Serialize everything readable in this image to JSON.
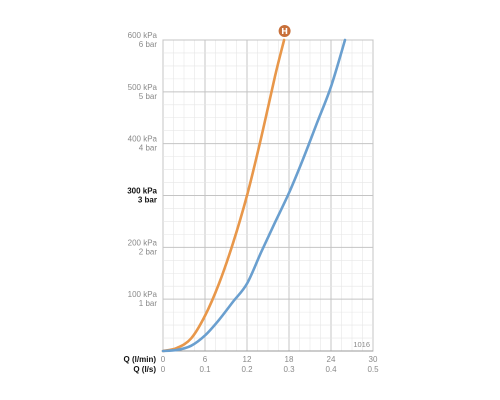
{
  "chart_data": {
    "type": "line",
    "title": "",
    "xlabel": "Q (l/min)",
    "xlabel_secondary": "Q (l/s)",
    "ylabel": "",
    "xlim": [
      0,
      30
    ],
    "ylim": [
      0,
      6
    ],
    "grid": true,
    "x_ticks": [
      {
        "value": 0,
        "label": "0",
        "label_secondary": "0"
      },
      {
        "value": 6,
        "label": "6",
        "label_secondary": "0.1"
      },
      {
        "value": 12,
        "label": "12",
        "label_secondary": "0.2"
      },
      {
        "value": 18,
        "label": "18",
        "label_secondary": "0.3"
      },
      {
        "value": 24,
        "label": "24",
        "label_secondary": "0.4"
      },
      {
        "value": 30,
        "label": "30",
        "label_secondary": "0.5"
      }
    ],
    "y_ticks": [
      {
        "value": 1,
        "label_kpa": "100 kPa",
        "label_bar": "1 bar",
        "bold": false
      },
      {
        "value": 2,
        "label_kpa": "200 kPa",
        "label_bar": "2 bar",
        "bold": false
      },
      {
        "value": 3,
        "label_kpa": "300 kPa",
        "label_bar": "3 bar",
        "bold": true
      },
      {
        "value": 4,
        "label_kpa": "400 kPa",
        "label_bar": "4 bar",
        "bold": false
      },
      {
        "value": 5,
        "label_kpa": "500 kPa",
        "label_bar": "5 bar",
        "bold": false
      },
      {
        "value": 6,
        "label_kpa": "600 kPa",
        "label_bar": "6 bar",
        "bold": false
      }
    ],
    "series": [
      {
        "color": "#E8974A",
        "points": [
          [
            0,
            0
          ],
          [
            2,
            0.06
          ],
          [
            4,
            0.24
          ],
          [
            6,
            0.68
          ],
          [
            8,
            1.3
          ],
          [
            10,
            2.08
          ],
          [
            12,
            3.0
          ],
          [
            14,
            4.1
          ],
          [
            16,
            5.3
          ],
          [
            17.3,
            6.0
          ]
        ]
      },
      {
        "color": "#6A9FCF",
        "points": [
          [
            0,
            0
          ],
          [
            2,
            0.02
          ],
          [
            4,
            0.1
          ],
          [
            6,
            0.3
          ],
          [
            8,
            0.6
          ],
          [
            10,
            0.95
          ],
          [
            12,
            1.3
          ],
          [
            14,
            1.9
          ],
          [
            16,
            2.48
          ],
          [
            18,
            3.05
          ],
          [
            20,
            3.7
          ],
          [
            22,
            4.4
          ],
          [
            24,
            5.1
          ],
          [
            26,
            6.0
          ]
        ]
      }
    ],
    "code_label": "1016",
    "marker": {
      "text": "H",
      "color": "#C8703A"
    }
  }
}
